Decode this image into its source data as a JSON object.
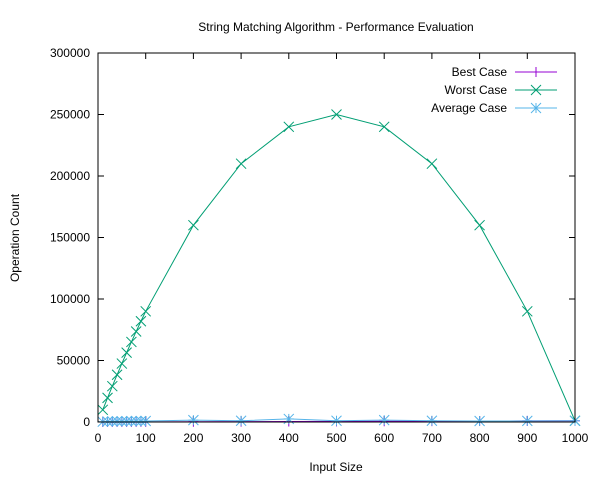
{
  "chart_data": {
    "type": "line",
    "title": "String Matching Algorithm - Performance Evaluation",
    "xlabel": "Input Size",
    "ylabel": "Operation Count",
    "xlim": [
      0,
      1000
    ],
    "ylim": [
      0,
      300000
    ],
    "x_ticks": [
      "0",
      "100",
      "200",
      "300",
      "400",
      "500",
      "600",
      "700",
      "800",
      "900",
      "1000"
    ],
    "y_ticks": [
      "0",
      "50000",
      "100000",
      "150000",
      "200000",
      "250000",
      "300000"
    ],
    "grid": false,
    "legend_position": "top-right",
    "series": [
      {
        "name": "Best Case",
        "color": "#9400d3",
        "marker": "plus",
        "x": [
          10,
          20,
          30,
          40,
          50,
          60,
          70,
          80,
          90,
          100,
          200,
          300,
          400,
          500,
          600,
          700,
          800,
          900,
          1000
        ],
        "y": [
          10,
          20,
          30,
          40,
          50,
          60,
          70,
          80,
          90,
          100,
          200,
          300,
          400,
          500,
          600,
          700,
          800,
          900,
          1000
        ]
      },
      {
        "name": "Worst Case",
        "color": "#009e73",
        "marker": "cross",
        "x": [
          10,
          20,
          30,
          40,
          50,
          60,
          70,
          80,
          90,
          100,
          200,
          300,
          400,
          500,
          600,
          700,
          800,
          900,
          1000
        ],
        "y": [
          9900,
          19600,
          29100,
          38400,
          47500,
          56400,
          65100,
          73600,
          81900,
          90000,
          160000,
          210000,
          240000,
          250000,
          240000,
          210000,
          160000,
          90000,
          1000
        ]
      },
      {
        "name": "Average Case",
        "color": "#56b4e9",
        "marker": "star",
        "x": [
          10,
          20,
          30,
          40,
          50,
          60,
          70,
          80,
          90,
          100,
          200,
          300,
          400,
          500,
          600,
          700,
          800,
          900,
          1000
        ],
        "y": [
          250,
          400,
          500,
          600,
          500,
          600,
          700,
          800,
          700,
          800,
          1500,
          1000,
          2500,
          1000,
          1500,
          1000,
          800,
          900,
          1000
        ]
      }
    ]
  }
}
